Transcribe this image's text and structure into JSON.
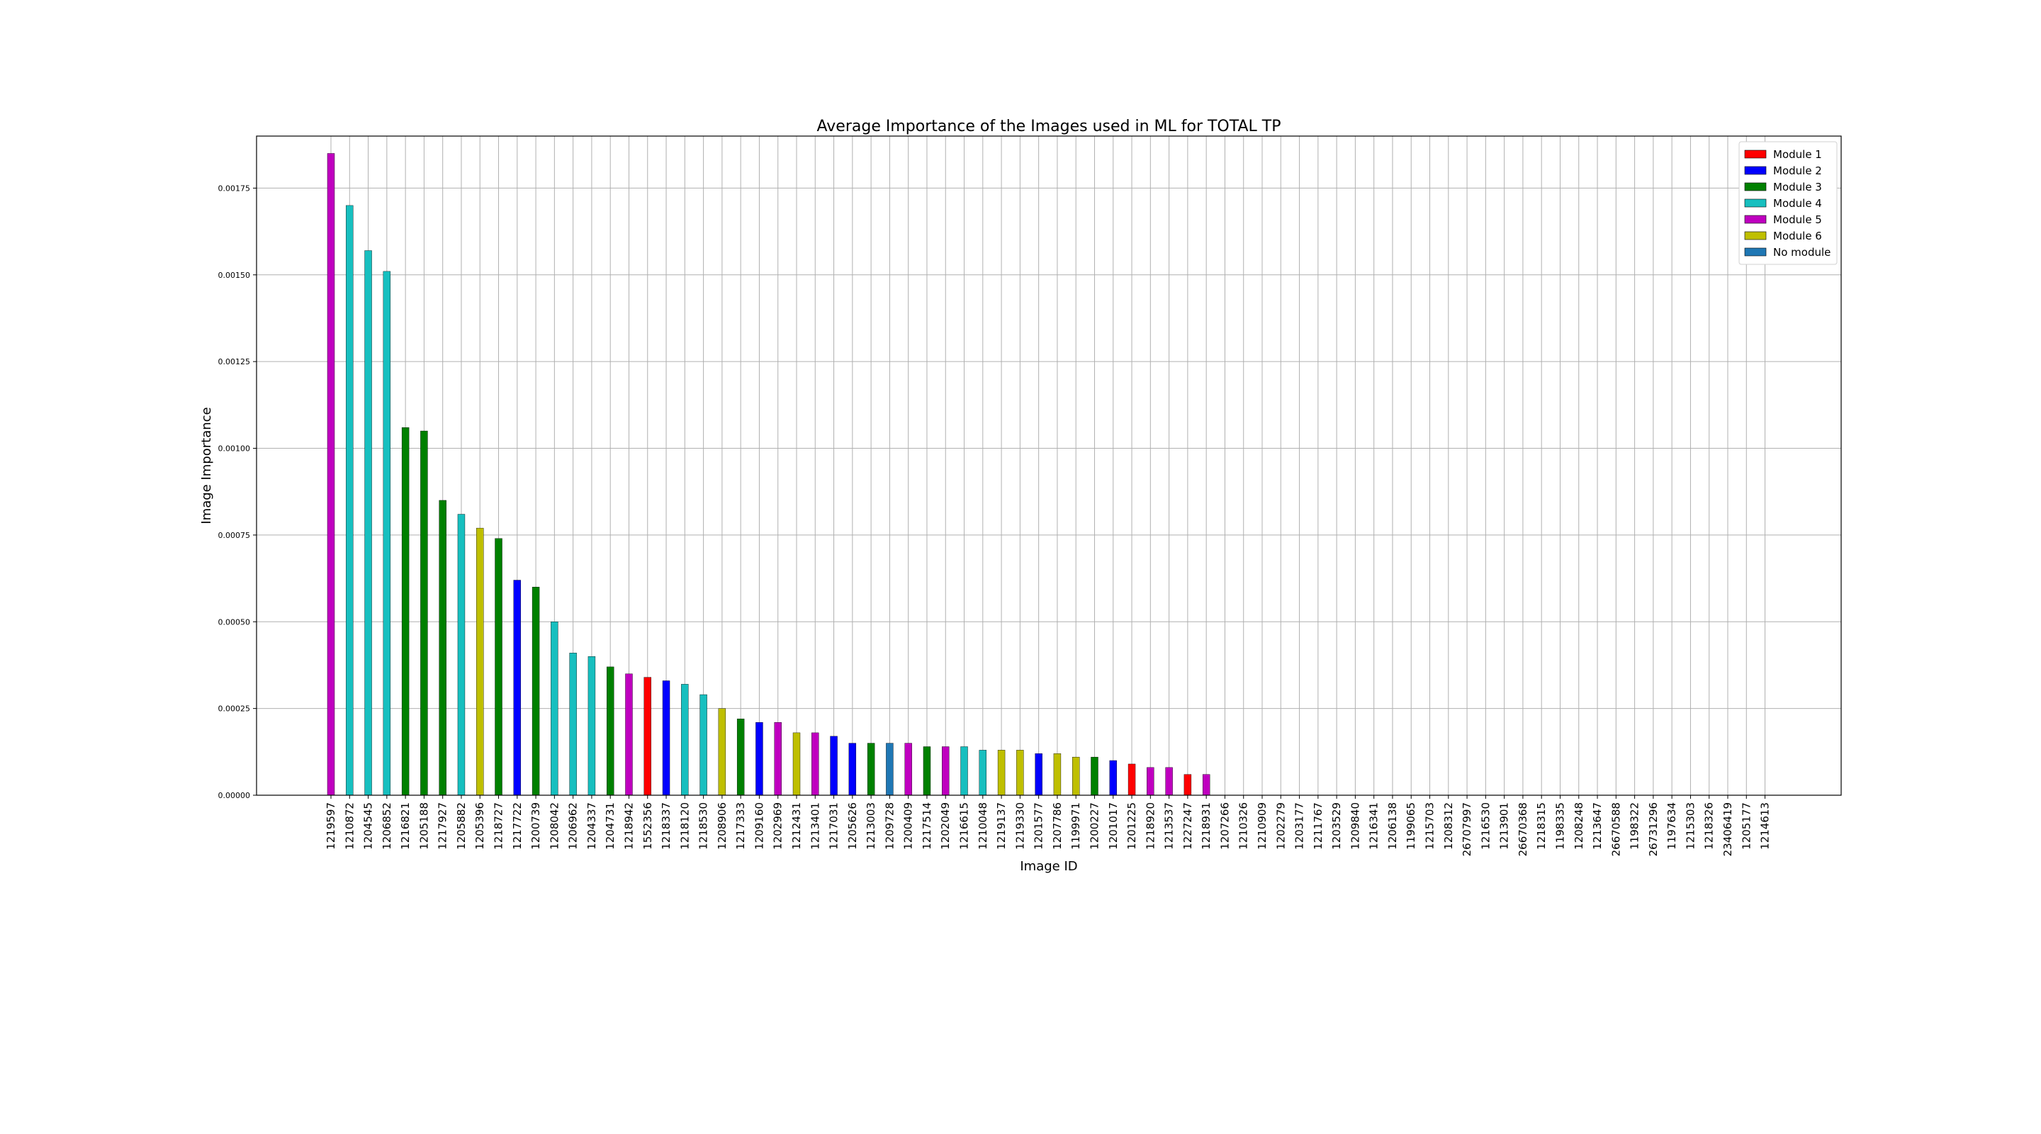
{
  "chart_data": {
    "type": "bar",
    "title": "Average Importance of the Images used in ML for TOTAL TP",
    "xlabel": "Image ID",
    "ylabel": "Image Importance",
    "ylim": [
      0,
      0.0019
    ],
    "yticks": [
      "0.00000",
      "0.00025",
      "0.00050",
      "0.00075",
      "0.00100",
      "0.00125",
      "0.00150",
      "0.00175"
    ],
    "grid": true,
    "legend_position": "top-right",
    "legend": [
      {
        "label": "Module 1",
        "color": "#ff0000"
      },
      {
        "label": "Module 2",
        "color": "#0000ff"
      },
      {
        "label": "Module 3",
        "color": "#008000"
      },
      {
        "label": "Module 4",
        "color": "#17bfbf"
      },
      {
        "label": "Module 5",
        "color": "#bf00bf"
      },
      {
        "label": "Module 6",
        "color": "#bfbf00"
      },
      {
        "label": "No module",
        "color": "#1f77b4"
      }
    ],
    "categories": [
      "1219597",
      "1210872",
      "1204545",
      "1206852",
      "1216821",
      "1205188",
      "1217927",
      "1205882",
      "1205396",
      "1218727",
      "1217722",
      "1200739",
      "1208042",
      "1206962",
      "1204337",
      "1204731",
      "1218942",
      "1552356",
      "1218337",
      "1218120",
      "1218530",
      "1208906",
      "1217333",
      "1209160",
      "1202969",
      "1212431",
      "1213401",
      "1217031",
      "1205626",
      "1213003",
      "1209728",
      "1200409",
      "1217514",
      "1202049",
      "1216615",
      "1210048",
      "1219137",
      "1219330",
      "1201577",
      "1207786",
      "1199971",
      "1200227",
      "1201017",
      "1201225",
      "1218920",
      "1213537",
      "1227247",
      "1218931",
      "1207266",
      "1210326",
      "1210909",
      "1202279",
      "1203177",
      "1211767",
      "1203529",
      "1209840",
      "1216341",
      "1206138",
      "1199065",
      "1215703",
      "1208312",
      "26707997",
      "1216530",
      "1213901",
      "26670368",
      "1218315",
      "1198335",
      "1208248",
      "1213647",
      "26670588",
      "1198322",
      "26731296",
      "1197634",
      "1215303",
      "1218326",
      "23406419",
      "1205177",
      "1214613"
    ],
    "values": [
      0.00185,
      0.0017,
      0.00157,
      0.00151,
      0.00106,
      0.00105,
      0.00085,
      0.00081,
      0.00077,
      0.00074,
      0.00062,
      0.0006,
      0.0005,
      0.00041,
      0.0004,
      0.00037,
      0.00035,
      0.00034,
      0.00033,
      0.00032,
      0.00029,
      0.00025,
      0.00022,
      0.00021,
      0.00021,
      0.00018,
      0.00018,
      0.00017,
      0.00015,
      0.00015,
      0.00015,
      0.00015,
      0.00014,
      0.00014,
      0.00014,
      0.00013,
      0.00013,
      0.00013,
      0.00012,
      0.00012,
      0.00011,
      0.00011,
      0.0001,
      9e-05,
      8e-05,
      8e-05,
      6e-05,
      6e-05,
      0,
      0,
      0,
      0,
      0,
      0,
      0,
      0,
      0,
      0,
      0,
      0,
      0,
      0,
      0,
      0,
      0,
      0,
      0,
      0,
      0,
      0,
      0,
      0,
      0,
      0,
      0,
      0,
      0,
      0
    ],
    "modules": [
      5,
      4,
      4,
      4,
      3,
      3,
      3,
      4,
      6,
      3,
      2,
      3,
      4,
      4,
      4,
      3,
      5,
      1,
      2,
      4,
      4,
      6,
      3,
      2,
      5,
      6,
      5,
      2,
      2,
      3,
      7,
      5,
      3,
      5,
      4,
      4,
      6,
      6,
      2,
      6,
      6,
      3,
      2,
      1,
      5,
      5,
      1,
      5,
      0,
      0,
      0,
      0,
      0,
      0,
      0,
      0,
      0,
      0,
      0,
      0,
      0,
      0,
      0,
      0,
      0,
      0,
      0,
      0,
      0,
      0,
      0,
      0,
      0,
      0,
      0,
      0,
      0,
      0
    ]
  }
}
